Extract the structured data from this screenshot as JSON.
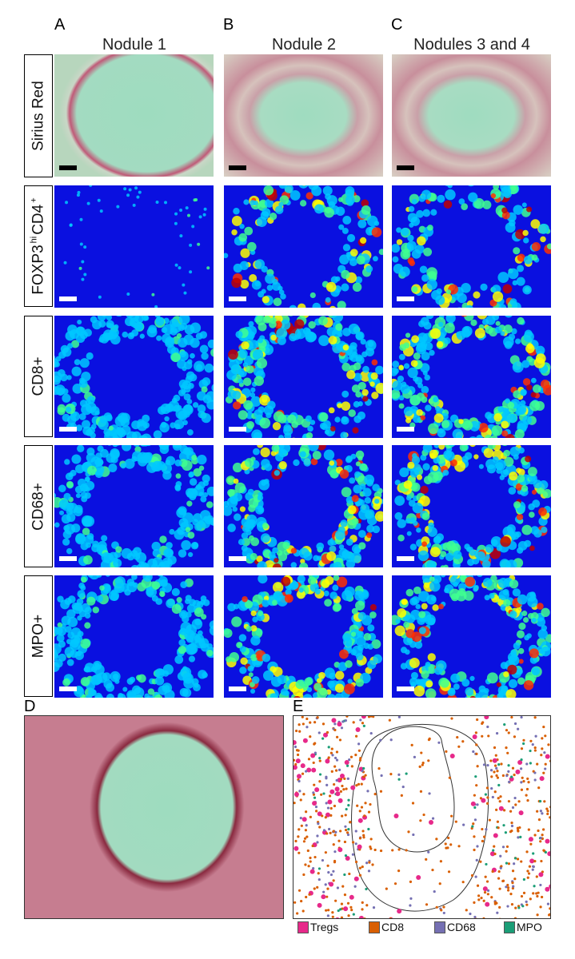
{
  "columns": [
    {
      "letter": "A",
      "title": "Nodule 1"
    },
    {
      "letter": "B",
      "title": "Nodule 2"
    },
    {
      "letter": "C",
      "title": "Nodules 3 and 4"
    }
  ],
  "rows": [
    {
      "label": "Sirius Red",
      "type": "stain"
    },
    {
      "label": "FOXP3hiCD4+",
      "label_main": "FOXP3",
      "label_sup1": "hi",
      "label_mid": "CD4",
      "label_sup2": "+",
      "type": "heatmap"
    },
    {
      "label": "CD8+",
      "type": "heatmap"
    },
    {
      "label": "CD68+",
      "type": "heatmap"
    },
    {
      "label": "MPO+",
      "type": "heatmap"
    }
  ],
  "panel_d": {
    "letter": "D"
  },
  "panel_e": {
    "letter": "E"
  },
  "legend": [
    {
      "label": "Tregs",
      "color": "#e7298a"
    },
    {
      "label": "CD8",
      "color": "#d95f02"
    },
    {
      "label": "CD68",
      "color": "#7570b3"
    },
    {
      "label": "MPO",
      "color": "#1b9e77"
    }
  ]
}
